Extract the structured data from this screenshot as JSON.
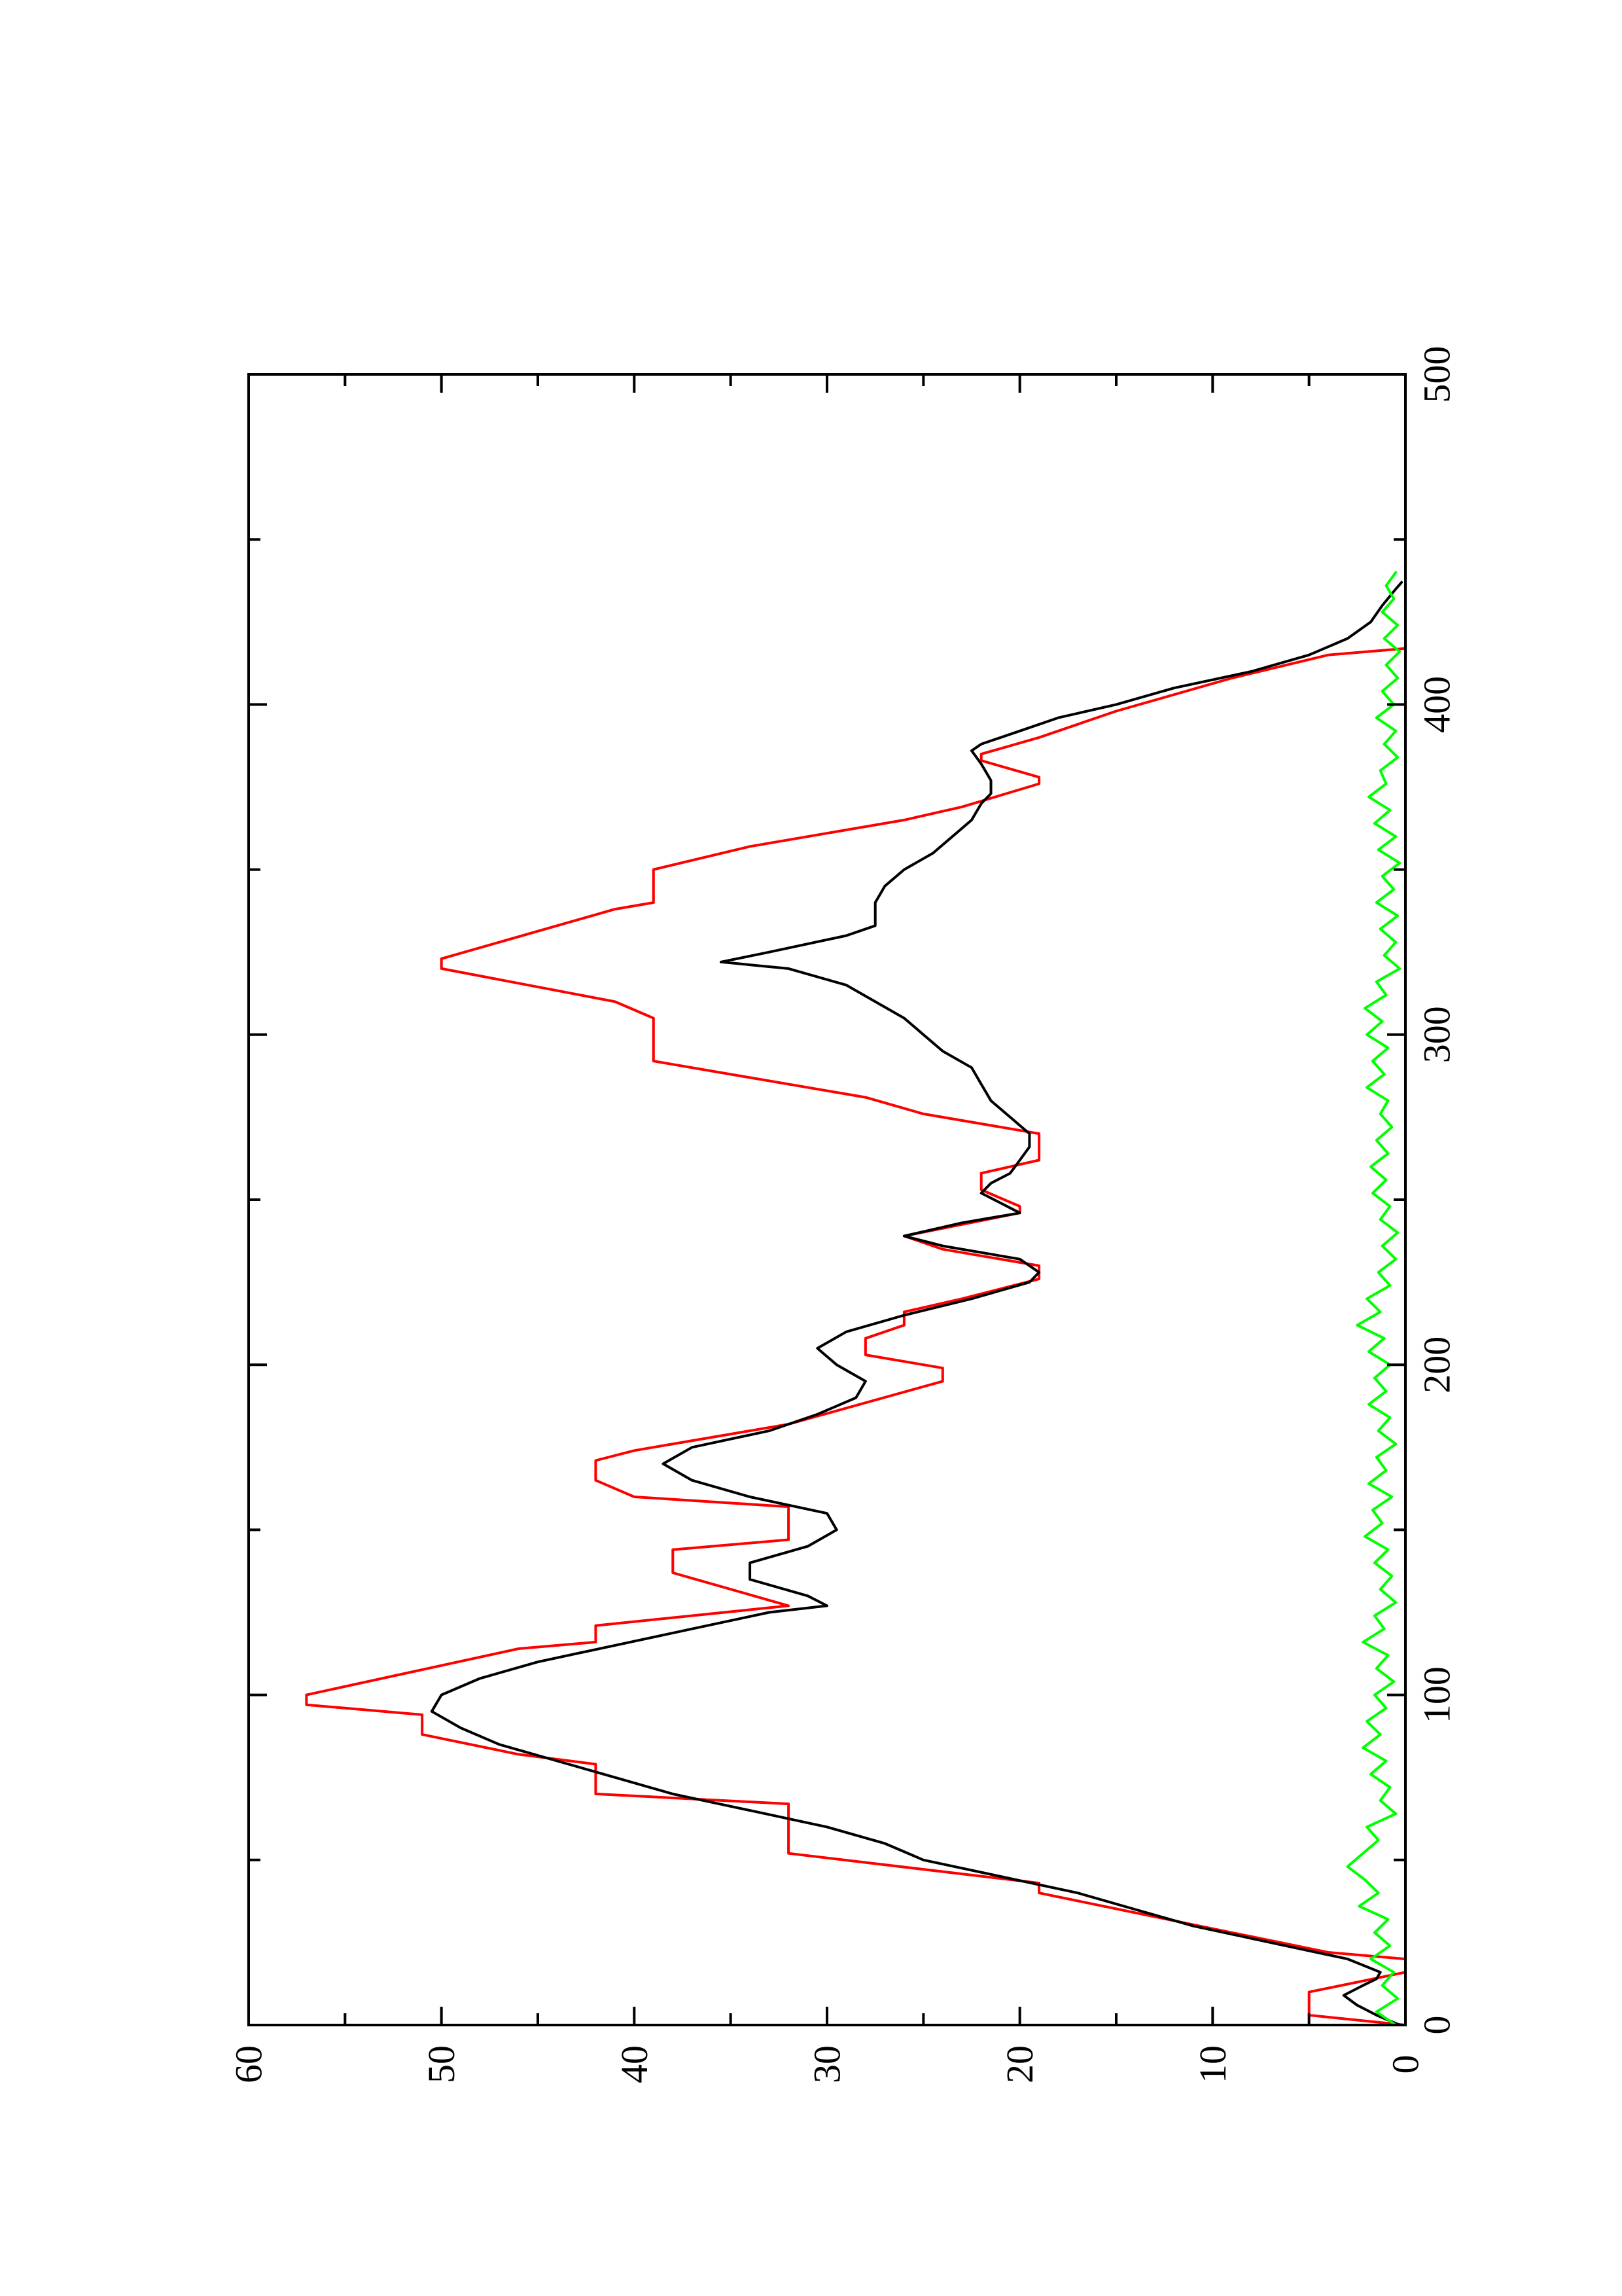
{
  "chart_data": {
    "type": "line",
    "title": "",
    "xlabel": "",
    "ylabel": "",
    "xlim": [
      0,
      500
    ],
    "ylim": [
      0,
      60
    ],
    "xticks": [
      0,
      100,
      200,
      300,
      400,
      500
    ],
    "xticks_minor": [
      50,
      150,
      250,
      350,
      450
    ],
    "yticks": [
      0,
      10,
      20,
      30,
      40,
      50,
      60
    ],
    "yticks_minor": [
      5,
      15,
      25,
      35,
      45,
      55
    ],
    "x_tick_labels": [
      "0",
      "100",
      "200",
      "300",
      "400",
      "500"
    ],
    "y_tick_labels": [
      "0",
      "10",
      "20",
      "30",
      "40",
      "50",
      "60"
    ],
    "grid": false,
    "legend": "none",
    "orientation": "rotated 90 degrees counter-clockwise (y axis drawn horizontally along the bottom, x axis drawn vertically along the right)",
    "series": [
      {
        "color": "#ff0000",
        "style": "step",
        "points": [
          [
            0,
            0
          ],
          [
            3,
            5
          ],
          [
            10,
            5
          ],
          [
            16,
            0
          ],
          [
            17,
            0
          ],
          [
            20,
            0
          ],
          [
            22,
            4
          ],
          [
            28,
            9
          ],
          [
            40,
            19
          ],
          [
            43,
            19
          ],
          [
            52,
            32
          ],
          [
            67,
            32
          ],
          [
            70,
            42
          ],
          [
            79,
            42
          ],
          [
            82,
            46
          ],
          [
            88,
            51
          ],
          [
            94,
            51
          ],
          [
            96,
            55
          ],
          [
            97,
            57
          ],
          [
            100,
            57
          ],
          [
            114,
            46
          ],
          [
            116,
            42
          ],
          [
            121,
            42
          ],
          [
            127,
            32
          ],
          [
            137,
            38
          ],
          [
            144,
            38
          ],
          [
            147,
            32
          ],
          [
            157,
            32
          ],
          [
            160,
            40
          ],
          [
            165,
            42
          ],
          [
            171,
            42
          ],
          [
            174,
            40
          ],
          [
            182,
            32
          ],
          [
            195,
            24
          ],
          [
            199,
            24
          ],
          [
            203,
            28
          ],
          [
            208,
            28
          ],
          [
            212,
            26
          ],
          [
            216,
            26
          ],
          [
            220,
            23
          ],
          [
            226,
            19
          ],
          [
            230,
            19
          ],
          [
            235,
            24
          ],
          [
            239,
            26
          ],
          [
            246,
            20
          ],
          [
            248,
            20
          ],
          [
            253,
            22
          ],
          [
            258,
            22
          ],
          [
            262,
            19
          ],
          [
            270,
            19
          ],
          [
            276,
            25
          ],
          [
            281,
            28
          ],
          [
            287,
            34
          ],
          [
            292,
            39
          ],
          [
            305,
            39
          ],
          [
            310,
            41
          ],
          [
            320,
            50
          ],
          [
            323,
            50
          ],
          [
            338,
            41
          ],
          [
            340,
            39
          ],
          [
            350,
            39
          ],
          [
            357,
            34
          ],
          [
            365,
            26
          ],
          [
            369,
            23
          ],
          [
            376,
            19
          ],
          [
            378,
            19
          ],
          [
            383,
            22
          ],
          [
            385,
            22
          ],
          [
            390,
            19
          ],
          [
            398,
            15
          ],
          [
            408,
            9
          ],
          [
            415,
            4
          ],
          [
            417,
            0
          ],
          [
            440,
            0
          ]
        ]
      },
      {
        "color": "#000000",
        "style": "line",
        "points": [
          [
            0,
            0.3
          ],
          [
            3,
            1.5
          ],
          [
            6,
            2.5
          ],
          [
            9,
            3.2
          ],
          [
            12,
            2.2
          ],
          [
            14,
            1.5
          ],
          [
            16,
            1.3
          ],
          [
            20,
            3
          ],
          [
            25,
            7
          ],
          [
            30,
            11
          ],
          [
            35,
            14
          ],
          [
            40,
            17
          ],
          [
            45,
            21
          ],
          [
            50,
            25
          ],
          [
            55,
            27
          ],
          [
            60,
            30
          ],
          [
            65,
            34
          ],
          [
            70,
            38
          ],
          [
            75,
            41
          ],
          [
            80,
            44
          ],
          [
            85,
            47
          ],
          [
            90,
            49
          ],
          [
            95,
            50.5
          ],
          [
            100,
            50
          ],
          [
            105,
            48
          ],
          [
            110,
            45
          ],
          [
            115,
            41
          ],
          [
            120,
            37
          ],
          [
            125,
            33
          ],
          [
            127,
            30
          ],
          [
            130,
            31
          ],
          [
            135,
            34
          ],
          [
            140,
            34
          ],
          [
            145,
            31
          ],
          [
            150,
            29.5
          ],
          [
            155,
            30
          ],
          [
            160,
            34
          ],
          [
            165,
            37
          ],
          [
            170,
            38.5
          ],
          [
            175,
            37
          ],
          [
            180,
            33
          ],
          [
            185,
            30.5
          ],
          [
            190,
            28.5
          ],
          [
            195,
            28
          ],
          [
            200,
            29.5
          ],
          [
            205,
            30.5
          ],
          [
            210,
            29
          ],
          [
            215,
            26
          ],
          [
            220,
            22.5
          ],
          [
            225,
            19.5
          ],
          [
            228,
            19
          ],
          [
            232,
            20
          ],
          [
            236,
            24
          ],
          [
            239,
            26
          ],
          [
            243,
            23
          ],
          [
            246,
            20
          ],
          [
            249,
            21
          ],
          [
            252,
            22
          ],
          [
            255,
            21.5
          ],
          [
            258,
            20.5
          ],
          [
            262,
            20
          ],
          [
            266,
            19.5
          ],
          [
            270,
            19.5
          ],
          [
            275,
            20.5
          ],
          [
            280,
            21.5
          ],
          [
            285,
            22
          ],
          [
            290,
            22.5
          ],
          [
            295,
            24
          ],
          [
            300,
            25
          ],
          [
            305,
            26
          ],
          [
            310,
            27.5
          ],
          [
            315,
            29
          ],
          [
            320,
            32
          ],
          [
            322,
            35.5
          ],
          [
            325,
            33
          ],
          [
            330,
            29
          ],
          [
            333,
            27.5
          ],
          [
            340,
            27.5
          ],
          [
            345,
            27
          ],
          [
            350,
            26
          ],
          [
            355,
            24.5
          ],
          [
            360,
            23.5
          ],
          [
            365,
            22.5
          ],
          [
            370,
            22
          ],
          [
            373,
            21.5
          ],
          [
            377,
            21.5
          ],
          [
            382,
            22
          ],
          [
            386,
            22.5
          ],
          [
            388,
            22
          ],
          [
            392,
            20
          ],
          [
            396,
            18
          ],
          [
            400,
            15
          ],
          [
            405,
            12
          ],
          [
            410,
            8
          ],
          [
            415,
            5
          ],
          [
            420,
            3
          ],
          [
            425,
            1.8
          ],
          [
            430,
            1.2
          ],
          [
            435,
            0.5
          ],
          [
            437,
            0.2
          ]
        ]
      },
      {
        "color": "#00ff00",
        "style": "line",
        "points": [
          [
            0,
            0.5
          ],
          [
            4,
            1.5
          ],
          [
            8,
            0.4
          ],
          [
            12,
            1.2
          ],
          [
            16,
            0.6
          ],
          [
            20,
            1.8
          ],
          [
            24,
            0.8
          ],
          [
            28,
            1.6
          ],
          [
            32,
            0.9
          ],
          [
            36,
            2.4
          ],
          [
            40,
            1.4
          ],
          [
            44,
            2.1
          ],
          [
            48,
            3.0
          ],
          [
            52,
            2.2
          ],
          [
            56,
            1.4
          ],
          [
            60,
            2.0
          ],
          [
            64,
            0.5
          ],
          [
            68,
            1.3
          ],
          [
            72,
            0.8
          ],
          [
            76,
            1.8
          ],
          [
            80,
            1.0
          ],
          [
            84,
            2.2
          ],
          [
            88,
            1.3
          ],
          [
            92,
            2.0
          ],
          [
            96,
            1.0
          ],
          [
            100,
            1.6
          ],
          [
            104,
            0.6
          ],
          [
            108,
            1.5
          ],
          [
            112,
            0.9
          ],
          [
            116,
            2.2
          ],
          [
            120,
            1.1
          ],
          [
            124,
            1.6
          ],
          [
            128,
            0.5
          ],
          [
            132,
            1.3
          ],
          [
            136,
            0.7
          ],
          [
            140,
            1.6
          ],
          [
            144,
            0.9
          ],
          [
            148,
            2.1
          ],
          [
            152,
            1.2
          ],
          [
            156,
            1.7
          ],
          [
            160,
            0.7
          ],
          [
            164,
            1.9
          ],
          [
            168,
            1.0
          ],
          [
            172,
            1.5
          ],
          [
            176,
            0.5
          ],
          [
            180,
            1.4
          ],
          [
            184,
            0.8
          ],
          [
            188,
            1.9
          ],
          [
            192,
            1.0
          ],
          [
            196,
            1.6
          ],
          [
            200,
            0.8
          ],
          [
            204,
            1.9
          ],
          [
            208,
            1.1
          ],
          [
            212,
            2.5
          ],
          [
            216,
            1.3
          ],
          [
            220,
            2.0
          ],
          [
            224,
            0.8
          ],
          [
            228,
            1.4
          ],
          [
            232,
            0.5
          ],
          [
            236,
            1.2
          ],
          [
            240,
            0.4
          ],
          [
            244,
            1.3
          ],
          [
            248,
            0.8
          ],
          [
            252,
            1.7
          ],
          [
            256,
            1.0
          ],
          [
            260,
            1.8
          ],
          [
            264,
            0.9
          ],
          [
            268,
            1.5
          ],
          [
            272,
            0.7
          ],
          [
            276,
            1.3
          ],
          [
            280,
            0.9
          ],
          [
            284,
            2.0
          ],
          [
            288,
            1.1
          ],
          [
            292,
            1.7
          ],
          [
            296,
            0.9
          ],
          [
            300,
            2.0
          ],
          [
            304,
            1.2
          ],
          [
            308,
            2.1
          ],
          [
            312,
            1.0
          ],
          [
            316,
            1.5
          ],
          [
            320,
            0.3
          ],
          [
            324,
            1.1
          ],
          [
            328,
            0.5
          ],
          [
            332,
            1.3
          ],
          [
            336,
            0.4
          ],
          [
            340,
            1.5
          ],
          [
            344,
            0.6
          ],
          [
            348,
            1.2
          ],
          [
            352,
            0.3
          ],
          [
            356,
            1.4
          ],
          [
            360,
            0.5
          ],
          [
            364,
            1.6
          ],
          [
            368,
            0.8
          ],
          [
            372,
            1.9
          ],
          [
            376,
            1.0
          ],
          [
            380,
            1.3
          ],
          [
            384,
            0.4
          ],
          [
            388,
            1.1
          ],
          [
            392,
            0.5
          ],
          [
            396,
            1.5
          ],
          [
            400,
            0.6
          ],
          [
            404,
            1.2
          ],
          [
            408,
            0.4
          ],
          [
            412,
            1.0
          ],
          [
            416,
            0.3
          ],
          [
            420,
            1.1
          ],
          [
            424,
            0.4
          ],
          [
            428,
            1.2
          ],
          [
            432,
            0.6
          ],
          [
            436,
            1.0
          ],
          [
            440,
            0.5
          ]
        ]
      }
    ]
  }
}
